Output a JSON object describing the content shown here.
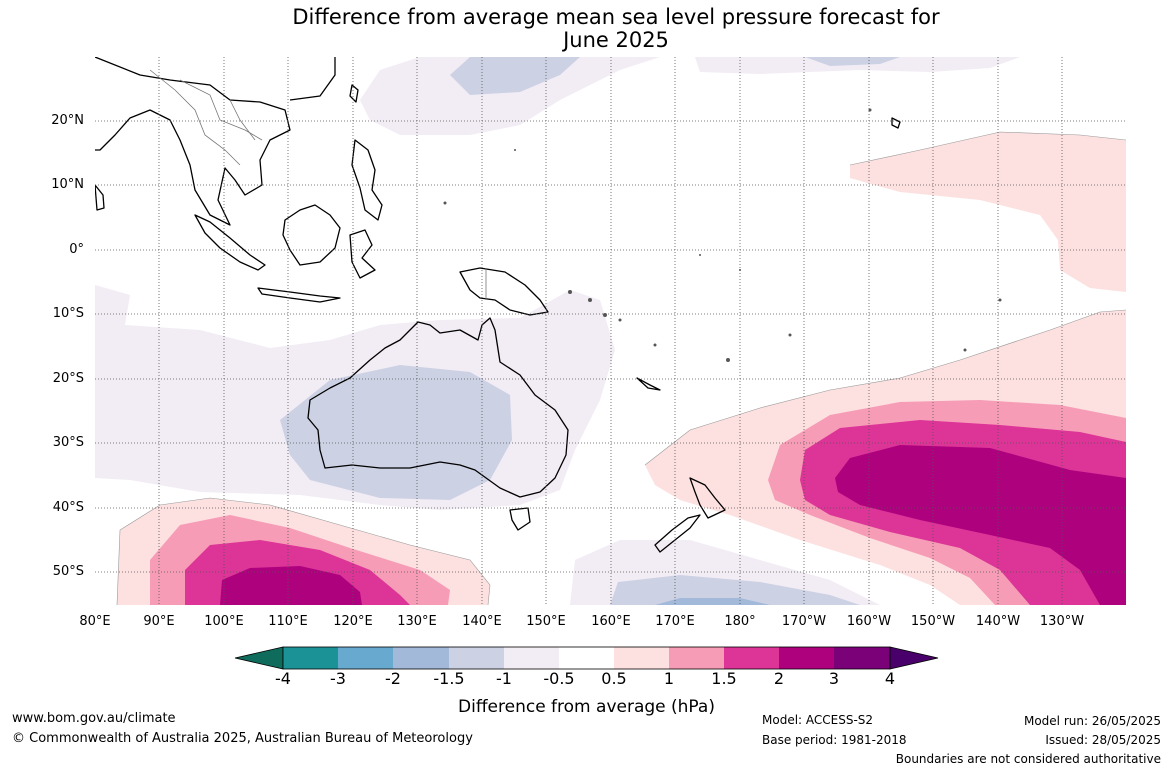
{
  "title": {
    "line1": "Difference from average mean sea level pressure forecast for",
    "line2": "June 2025"
  },
  "map": {
    "lat_labels": [
      "20°N",
      "10°N",
      "0°",
      "10°S",
      "20°S",
      "30°S",
      "40°S",
      "50°S"
    ],
    "lon_labels": [
      "80°E",
      "90°E",
      "100°E",
      "110°E",
      "120°E",
      "130°E",
      "140°E",
      "150°E",
      "160°E",
      "170°E",
      "180°",
      "170°W",
      "160°W",
      "150°W",
      "140°W",
      "130°W"
    ],
    "gridlines": "dotted",
    "extent": {
      "lon_min": 80,
      "lon_max": 240,
      "lat_min": -55,
      "lat_max": 30
    }
  },
  "colorbar": {
    "ticks": [
      "-4",
      "-3",
      "-2",
      "-1.5",
      "-1",
      "-0.5",
      "0.5",
      "1",
      "1.5",
      "2",
      "3",
      "4"
    ],
    "colors": [
      "#0f6b5c",
      "#1a9296",
      "#68a9cf",
      "#a3b9d9",
      "#cdd1e4",
      "#f2ecf4",
      "#ffffff",
      "#fde0e0",
      "#f69cb6",
      "#dd3497",
      "#ae017e",
      "#7a0177",
      "#49006a"
    ],
    "label": "Difference from average (hPa)"
  },
  "footer": {
    "website": "www.bom.gov.au/climate",
    "copyright": "© Commonwealth of Australia 2025, Australian Bureau of Meteorology",
    "model": "Model: ACCESS-S2",
    "base_period": "Base period: 1981-2018",
    "model_run": "Model run: 26/05/2025",
    "issued": "Issued: 28/05/2025",
    "disclaimer": "Boundaries are not considered authoritative"
  }
}
